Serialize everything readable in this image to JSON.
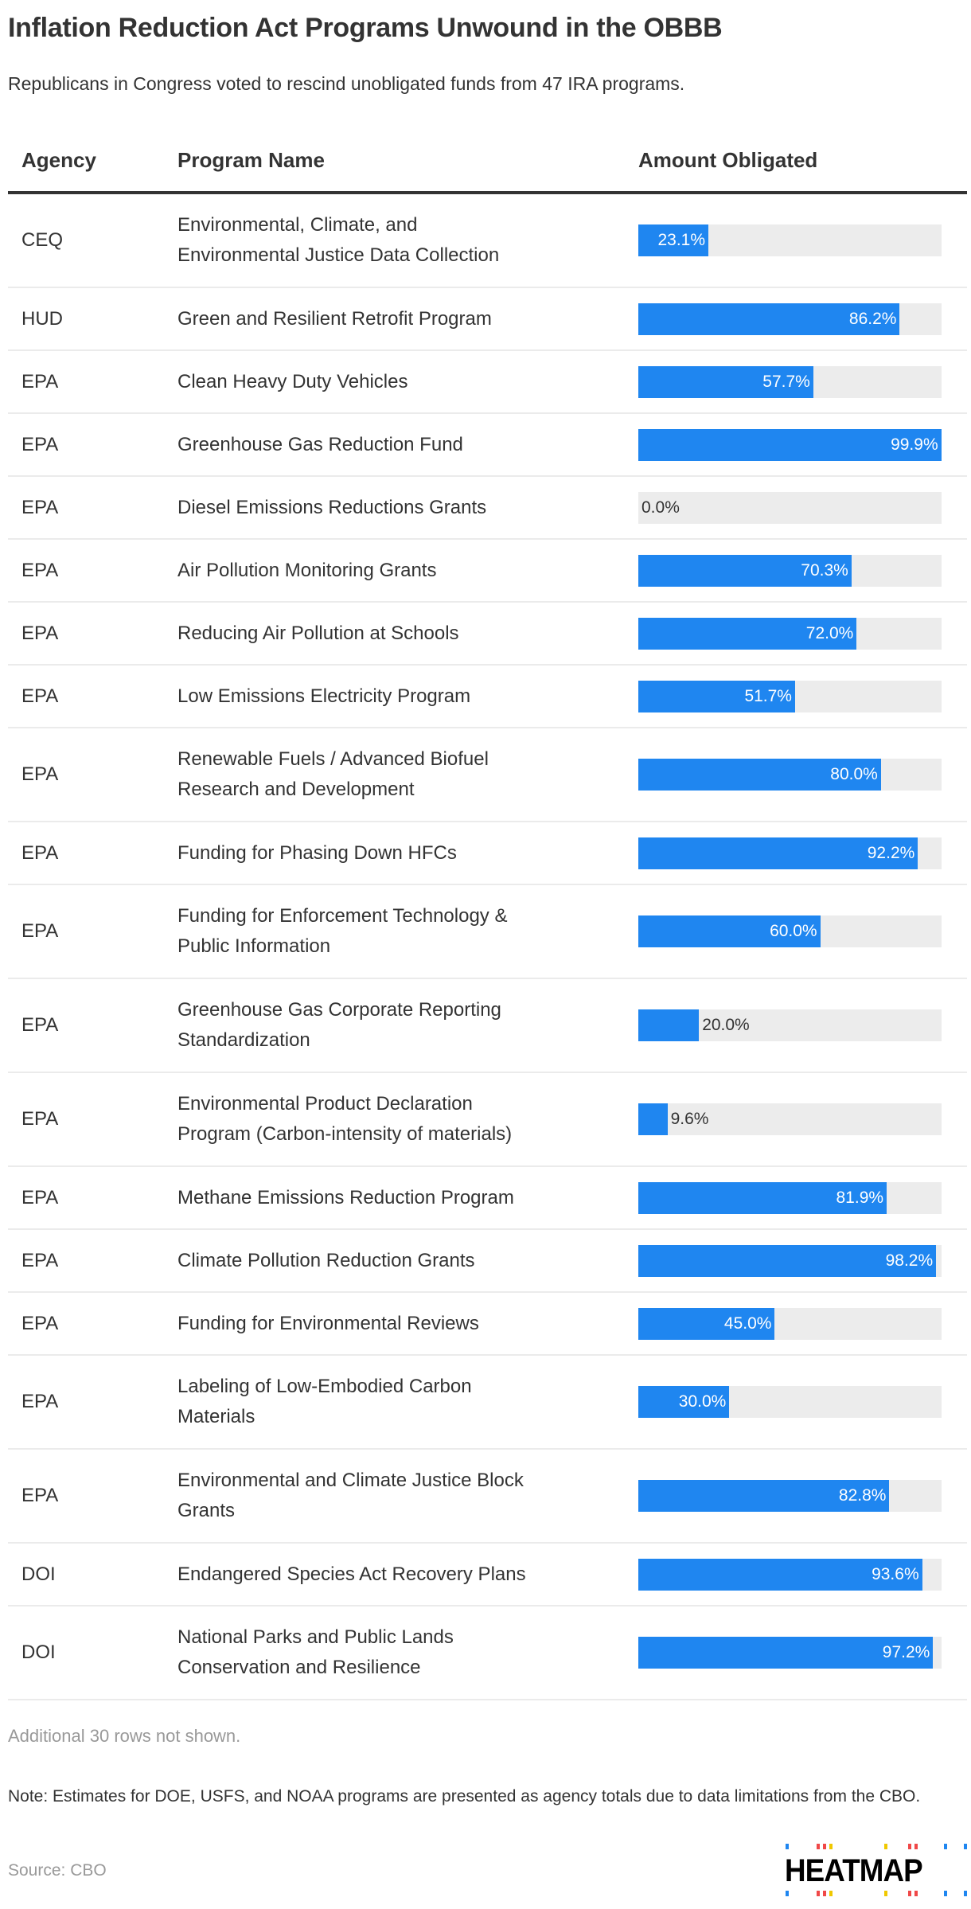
{
  "header": {
    "title": "Inflation Reduction Act Programs Unwound in the OBBB",
    "subtitle": "Republicans in Congress voted to rescind unobligated funds from 47 IRA programs."
  },
  "chart_data": {
    "type": "table",
    "columns": [
      "Agency",
      "Program Name",
      "Amount Obligated"
    ],
    "value_range": [
      0,
      100
    ],
    "rows": [
      {
        "agency": "CEQ",
        "program": [
          "Environmental, Climate, and",
          "Environmental Justice Data Collection"
        ],
        "value": 23.1,
        "label": "23.1%"
      },
      {
        "agency": "HUD",
        "program": [
          "Green and Resilient Retrofit Program"
        ],
        "value": 86.2,
        "label": "86.2%"
      },
      {
        "agency": "EPA",
        "program": [
          "Clean Heavy Duty Vehicles"
        ],
        "value": 57.7,
        "label": "57.7%"
      },
      {
        "agency": "EPA",
        "program": [
          "Greenhouse Gas Reduction Fund"
        ],
        "value": 99.9,
        "label": "99.9%"
      },
      {
        "agency": "EPA",
        "program": [
          "Diesel Emissions Reductions Grants"
        ],
        "value": 0.0,
        "label": "0.0%"
      },
      {
        "agency": "EPA",
        "program": [
          "Air Pollution Monitoring Grants"
        ],
        "value": 70.3,
        "label": "70.3%"
      },
      {
        "agency": "EPA",
        "program": [
          "Reducing Air Pollution at Schools"
        ],
        "value": 72.0,
        "label": "72.0%"
      },
      {
        "agency": "EPA",
        "program": [
          "Low Emissions Electricity Program"
        ],
        "value": 51.7,
        "label": "51.7%"
      },
      {
        "agency": "EPA",
        "program": [
          "Renewable Fuels / Advanced Biofuel",
          "Research and Development"
        ],
        "value": 80.0,
        "label": "80.0%"
      },
      {
        "agency": "EPA",
        "program": [
          "Funding for Phasing Down HFCs"
        ],
        "value": 92.2,
        "label": "92.2%"
      },
      {
        "agency": "EPA",
        "program": [
          "Funding for Enforcement Technology &",
          "Public Information"
        ],
        "value": 60.0,
        "label": "60.0%"
      },
      {
        "agency": "EPA",
        "program": [
          "Greenhouse Gas Corporate Reporting",
          "Standardization"
        ],
        "value": 20.0,
        "label": "20.0%"
      },
      {
        "agency": "EPA",
        "program": [
          "Environmental Product Declaration",
          "Program (Carbon-intensity of materials)"
        ],
        "value": 9.6,
        "label": "9.6%"
      },
      {
        "agency": "EPA",
        "program": [
          "Methane Emissions Reduction Program"
        ],
        "value": 81.9,
        "label": "81.9%"
      },
      {
        "agency": "EPA",
        "program": [
          "Climate Pollution Reduction Grants"
        ],
        "value": 98.2,
        "label": "98.2%"
      },
      {
        "agency": "EPA",
        "program": [
          "Funding for Environmental Reviews"
        ],
        "value": 45.0,
        "label": "45.0%"
      },
      {
        "agency": "EPA",
        "program": [
          "Labeling of Low-Embodied Carbon",
          "Materials"
        ],
        "value": 30.0,
        "label": "30.0%"
      },
      {
        "agency": "EPA",
        "program": [
          "Environmental and Climate Justice Block",
          "Grants"
        ],
        "value": 82.8,
        "label": "82.8%"
      },
      {
        "agency": "DOI",
        "program": [
          "Endangered Species Act Recovery Plans"
        ],
        "value": 93.6,
        "label": "93.6%"
      },
      {
        "agency": "DOI",
        "program": [
          "National Parks and Public Lands",
          "Conservation and Resilience"
        ],
        "value": 97.2,
        "label": "97.2%"
      }
    ]
  },
  "footer": {
    "rows_note": "Additional 30 rows not shown.",
    "note": "Note: Estimates for DOE, USFS, and NOAA programs are presented as agency totals due to data limitations from the CBO.",
    "source": "Source: CBO",
    "logo": "HEATMAP"
  },
  "colors": {
    "bar": "#1f86f0",
    "track": "#ececec",
    "text": "#333333",
    "logo_blue": "#1f86f0",
    "logo_red": "#f04848",
    "logo_yellow": "#f0c800"
  }
}
